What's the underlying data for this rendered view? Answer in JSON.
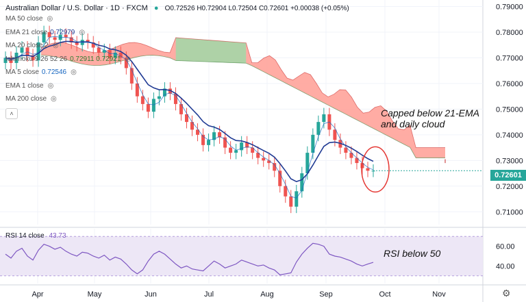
{
  "header": {
    "title": "Australian Dollar / U.S. Dollar · 1D · FXCM",
    "ohlc": "O0.72526 H0.72904 L0.72504 C0.72601 +0.00038 (+0.05%)"
  },
  "indicators": [
    {
      "label": "MA 50 close",
      "value": "",
      "color": "#555555"
    },
    {
      "label": "EMA 21 close",
      "value": "0.72979",
      "color": "#1f3a93"
    },
    {
      "label": "MA 20 close 2",
      "value": "",
      "color": "#888888"
    },
    {
      "label": "Ichimoku 9 26 52 26",
      "value": "0.72911  0.72921",
      "color": "#2e7d32"
    },
    {
      "label": "MA 5 close",
      "value": "0.72546",
      "color": "#1565c0"
    },
    {
      "label": "EMA 1 close",
      "value": "",
      "color": "#888888"
    },
    {
      "label": "MA 200 close",
      "value": "",
      "color": "#888888"
    }
  ],
  "annotations": {
    "cloud_note_line1": "Capped below 21-EMA",
    "cloud_note_line2": "and daily cloud",
    "rsi_note": "RSI below 50"
  },
  "rsi": {
    "label": "RSI 14 close",
    "value": "43.73"
  },
  "last_price": "0.72601",
  "icons": {
    "eye": "eye-icon",
    "collapse": "chevron-up-icon",
    "settings": "gear-icon"
  },
  "colors": {
    "bull": "#26a69a",
    "bear": "#ef5350",
    "ema21": "#1f3a93",
    "ma5": "#1565c0",
    "cloud_bear": "#ff9e94",
    "cloud_bull": "#a5d6a7",
    "rsi": "#7e57c2",
    "rsi_band": "#ede7f6",
    "circle": "#e53935"
  },
  "chart_data": [
    {
      "type": "candlestick",
      "title": "Australian Dollar / U.S. Dollar · 1D · FXCM",
      "xlabel": "",
      "ylabel": "",
      "x_ticks": [
        "Apr",
        "May",
        "Jun",
        "Jul",
        "Aug",
        "Sep",
        "Oct",
        "Nov"
      ],
      "y_ticks": [
        "0.79000",
        "0.78000",
        "0.77000",
        "0.76000",
        "0.75000",
        "0.74000",
        "0.73000",
        "0.72000",
        "0.71000"
      ],
      "ylim": [
        0.705,
        0.792
      ],
      "grid": true,
      "close_series": [
        0.77,
        0.768,
        0.772,
        0.774,
        0.771,
        0.769,
        0.776,
        0.78,
        0.778,
        0.777,
        0.779,
        0.778,
        0.776,
        0.775,
        0.777,
        0.776,
        0.774,
        0.772,
        0.773,
        0.77,
        0.772,
        0.77,
        0.766,
        0.76,
        0.755,
        0.752,
        0.749,
        0.754,
        0.755,
        0.758,
        0.756,
        0.752,
        0.748,
        0.745,
        0.742,
        0.74,
        0.736,
        0.738,
        0.741,
        0.739,
        0.735,
        0.733,
        0.734,
        0.737,
        0.735,
        0.733,
        0.731,
        0.73,
        0.729,
        0.726,
        0.72,
        0.716,
        0.712,
        0.718,
        0.725,
        0.733,
        0.74,
        0.745,
        0.748,
        0.742,
        0.738,
        0.735,
        0.733,
        0.731,
        0.729,
        0.727,
        0.726,
        0.726
      ],
      "series": [
        {
          "name": "EMA 21 close",
          "last": 0.72979
        },
        {
          "name": "MA 5 close",
          "last": 0.72546
        }
      ],
      "last_price": 0.72601
    },
    {
      "type": "line",
      "title": "RSI 14 close",
      "xlabel": "",
      "ylabel": "",
      "y_ticks": [
        "60.00",
        "40.00"
      ],
      "ylim": [
        25,
        75
      ],
      "band": [
        30,
        70
      ],
      "values": [
        52,
        48,
        55,
        58,
        50,
        46,
        56,
        62,
        60,
        57,
        59,
        55,
        52,
        50,
        54,
        53,
        50,
        48,
        51,
        46,
        49,
        47,
        42,
        36,
        32,
        36,
        45,
        52,
        55,
        52,
        47,
        42,
        38,
        40,
        37,
        36,
        35,
        40,
        45,
        42,
        38,
        40,
        42,
        46,
        44,
        42,
        40,
        41,
        38,
        36,
        31,
        32,
        33,
        44,
        52,
        58,
        63,
        62,
        60,
        52,
        50,
        49,
        47,
        45,
        42,
        40,
        42,
        43.73
      ],
      "last": 43.73
    }
  ]
}
